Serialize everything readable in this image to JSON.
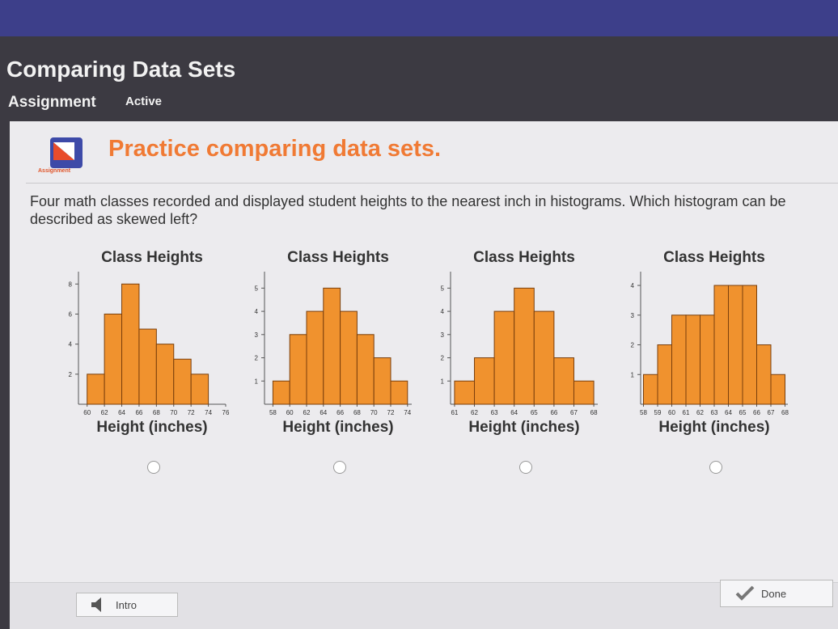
{
  "header": {
    "title": "Comparing Data Sets",
    "tab": "Assignment",
    "status": "Active"
  },
  "lesson": {
    "icon_label": "Assignment",
    "heading": "Practice comparing data sets.",
    "question": "Four math classes recorded and displayed student heights to the nearest inch in histograms. Which histogram can be described as skewed left?"
  },
  "chart_data": [
    {
      "type": "histogram",
      "title": "Class Heights",
      "x_label": "Height (inches)",
      "color": "#f0922e",
      "bins": [
        60,
        62,
        64,
        66,
        68,
        70,
        72,
        74
      ],
      "counts": [
        2,
        6,
        8,
        5,
        4,
        3,
        2
      ],
      "xlim": [
        59,
        76
      ],
      "xticks": [
        60,
        62,
        64,
        66,
        68,
        70,
        72,
        74,
        76
      ],
      "ylim": [
        0,
        8.5
      ],
      "yticks": [
        2,
        4,
        6,
        8
      ]
    },
    {
      "type": "histogram",
      "title": "Class Heights",
      "x_label": "Height (inches)",
      "color": "#f0922e",
      "bins": [
        58,
        60,
        62,
        64,
        66,
        68,
        70,
        72,
        74
      ],
      "counts": [
        1,
        3,
        4,
        5,
        4,
        3,
        2,
        1
      ],
      "xlim": [
        57,
        74.5
      ],
      "xticks": [
        58,
        60,
        62,
        64,
        66,
        68,
        70,
        72,
        74
      ],
      "ylim": [
        0,
        5.5
      ],
      "yticks": [
        1,
        2,
        3,
        4,
        5
      ]
    },
    {
      "type": "histogram",
      "title": "Class Heights",
      "x_label": "Height (inches)",
      "color": "#f0922e",
      "bins": [
        61,
        62,
        63,
        64,
        65,
        66,
        67,
        68
      ],
      "counts": [
        1,
        2,
        4,
        5,
        4,
        2,
        1
      ],
      "xlim": [
        60.8,
        68.2
      ],
      "xticks": [
        61,
        62,
        63,
        64,
        65,
        66,
        67,
        68
      ],
      "ylim": [
        0,
        5.5
      ],
      "yticks": [
        1,
        2,
        3,
        4,
        5
      ]
    },
    {
      "type": "histogram",
      "title": "Class Heights",
      "x_label": "Height (inches)",
      "color": "#f0922e",
      "bins": [
        58,
        59,
        60,
        61,
        62,
        63,
        64,
        65,
        66,
        67,
        68
      ],
      "counts": [
        1,
        2,
        3,
        3,
        3,
        4,
        4,
        4,
        2,
        1
      ],
      "xlim": [
        57.8,
        68.2
      ],
      "xticks": [
        58,
        59,
        60,
        61,
        62,
        63,
        64,
        65,
        66,
        67,
        68
      ],
      "ylim": [
        0,
        4.3
      ],
      "yticks": [
        1,
        2,
        3,
        4
      ]
    }
  ],
  "footer": {
    "intro": "Intro",
    "done": "Done"
  }
}
